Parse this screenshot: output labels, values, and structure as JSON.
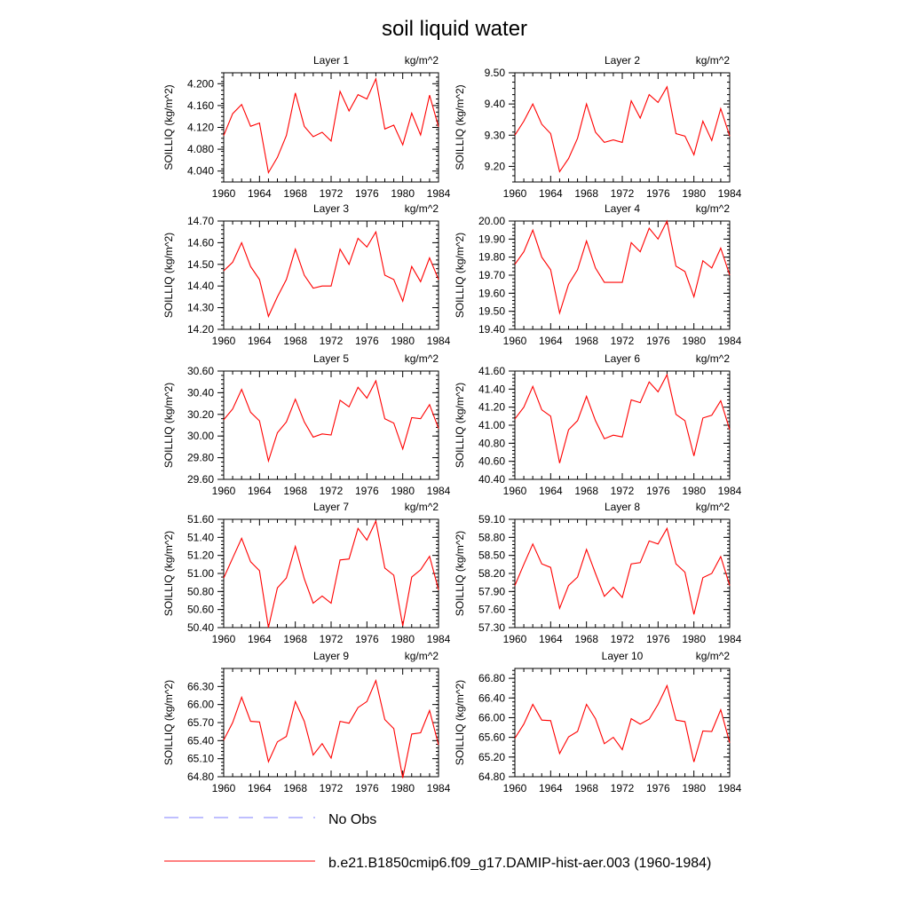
{
  "title": "soil liquid water",
  "legend": {
    "items": [
      {
        "label": "No Obs",
        "color": "#9999ff",
        "dash": true
      },
      {
        "label": "b.e21.B1850cmip6.f09_g17.DAMIP-hist-aer.003 (1960-1984)",
        "color": "#ff0000",
        "dash": false
      }
    ]
  },
  "series_color": "#ff0000",
  "chart_data": [
    {
      "type": "line",
      "title": "Layer 1",
      "units": "kg/m^2",
      "ylabel": "SOILLIQ  (kg/m^2)",
      "x": [
        1960,
        1961,
        1962,
        1963,
        1964,
        1965,
        1966,
        1967,
        1968,
        1969,
        1970,
        1971,
        1972,
        1973,
        1974,
        1975,
        1976,
        1977,
        1978,
        1979,
        1980,
        1981,
        1982,
        1983,
        1984
      ],
      "values": [
        4.105,
        4.145,
        4.162,
        4.122,
        4.128,
        4.037,
        4.065,
        4.105,
        4.183,
        4.122,
        4.103,
        4.111,
        4.095,
        4.186,
        4.15,
        4.18,
        4.172,
        4.209,
        4.117,
        4.124,
        4.088,
        4.146,
        4.106,
        4.179,
        4.121
      ],
      "xlim": [
        1960,
        1984
      ],
      "ylim": [
        4.02,
        4.22
      ],
      "xticks": [
        "1960",
        "1964",
        "1968",
        "1972",
        "1976",
        "1980",
        "1984"
      ],
      "yticks": [
        "4.040",
        "4.080",
        "4.120",
        "4.160",
        "4.200"
      ]
    },
    {
      "type": "line",
      "title": "Layer 2",
      "units": "kg/m^2",
      "ylabel": "SOILLIQ  (kg/m^2)",
      "x": [
        1960,
        1961,
        1962,
        1963,
        1964,
        1965,
        1966,
        1967,
        1968,
        1969,
        1970,
        1971,
        1972,
        1973,
        1974,
        1975,
        1976,
        1977,
        1978,
        1979,
        1980,
        1981,
        1982,
        1983,
        1984
      ],
      "values": [
        9.3,
        9.345,
        9.4,
        9.335,
        9.305,
        9.183,
        9.225,
        9.29,
        9.4,
        9.31,
        9.277,
        9.285,
        9.277,
        9.41,
        9.355,
        9.43,
        9.405,
        9.455,
        9.305,
        9.297,
        9.237,
        9.345,
        9.283,
        9.385,
        9.297
      ],
      "xlim": [
        1960,
        1984
      ],
      "ylim": [
        9.15,
        9.5
      ],
      "xticks": [
        "1960",
        "1964",
        "1968",
        "1972",
        "1976",
        "1980",
        "1984"
      ],
      "yticks": [
        "9.20",
        "9.30",
        "9.40",
        "9.50"
      ]
    },
    {
      "type": "line",
      "title": "Layer 3",
      "units": "kg/m^2",
      "ylabel": "SOILLIQ  (kg/m^2)",
      "x": [
        1960,
        1961,
        1962,
        1963,
        1964,
        1965,
        1966,
        1967,
        1968,
        1969,
        1970,
        1971,
        1972,
        1973,
        1974,
        1975,
        1976,
        1977,
        1978,
        1979,
        1980,
        1981,
        1982,
        1983,
        1984
      ],
      "values": [
        14.47,
        14.51,
        14.6,
        14.49,
        14.43,
        14.26,
        14.35,
        14.43,
        14.57,
        14.45,
        14.39,
        14.4,
        14.4,
        14.57,
        14.5,
        14.62,
        14.58,
        14.65,
        14.45,
        14.43,
        14.33,
        14.49,
        14.42,
        14.53,
        14.43
      ],
      "xlim": [
        1960,
        1984
      ],
      "ylim": [
        14.2,
        14.7
      ],
      "xticks": [
        "1960",
        "1964",
        "1968",
        "1972",
        "1976",
        "1980",
        "1984"
      ],
      "yticks": [
        "14.20",
        "14.30",
        "14.40",
        "14.50",
        "14.60",
        "14.70"
      ]
    },
    {
      "type": "line",
      "title": "Layer 4",
      "units": "kg/m^2",
      "ylabel": "SOILLIQ  (kg/m^2)",
      "x": [
        1960,
        1961,
        1962,
        1963,
        1964,
        1965,
        1966,
        1967,
        1968,
        1969,
        1970,
        1971,
        1972,
        1973,
        1974,
        1975,
        1976,
        1977,
        1978,
        1979,
        1980,
        1981,
        1982,
        1983,
        1984
      ],
      "values": [
        19.76,
        19.83,
        19.95,
        19.8,
        19.73,
        19.49,
        19.65,
        19.73,
        19.89,
        19.74,
        19.66,
        19.66,
        19.66,
        19.88,
        19.83,
        19.96,
        19.9,
        20.0,
        19.75,
        19.72,
        19.58,
        19.78,
        19.74,
        19.85,
        19.7
      ],
      "xlim": [
        1960,
        1984
      ],
      "ylim": [
        19.4,
        20.0
      ],
      "xticks": [
        "1960",
        "1964",
        "1968",
        "1972",
        "1976",
        "1980",
        "1984"
      ],
      "yticks": [
        "19.40",
        "19.50",
        "19.60",
        "19.70",
        "19.80",
        "19.90",
        "20.00"
      ]
    },
    {
      "type": "line",
      "title": "Layer 5",
      "units": "kg/m^2",
      "ylabel": "SOILLIQ  (kg/m^2)",
      "x": [
        1960,
        1961,
        1962,
        1963,
        1964,
        1965,
        1966,
        1967,
        1968,
        1969,
        1970,
        1971,
        1972,
        1973,
        1974,
        1975,
        1976,
        1977,
        1978,
        1979,
        1980,
        1981,
        1982,
        1983,
        1984
      ],
      "values": [
        30.15,
        30.25,
        30.43,
        30.22,
        30.14,
        29.77,
        30.03,
        30.13,
        30.34,
        30.13,
        29.99,
        30.02,
        30.01,
        30.33,
        30.27,
        30.45,
        30.35,
        30.51,
        30.16,
        30.12,
        29.88,
        30.17,
        30.16,
        30.29,
        30.07
      ],
      "xlim": [
        1960,
        1984
      ],
      "ylim": [
        29.6,
        30.6
      ],
      "xticks": [
        "1960",
        "1964",
        "1968",
        "1972",
        "1976",
        "1980",
        "1984"
      ],
      "yticks": [
        "29.60",
        "29.80",
        "30.00",
        "30.20",
        "30.40",
        "30.60"
      ]
    },
    {
      "type": "line",
      "title": "Layer 6",
      "units": "kg/m^2",
      "ylabel": "SOILLIQ  (kg/m^2)",
      "x": [
        1960,
        1961,
        1962,
        1963,
        1964,
        1965,
        1966,
        1967,
        1968,
        1969,
        1970,
        1971,
        1972,
        1973,
        1974,
        1975,
        1976,
        1977,
        1978,
        1979,
        1980,
        1981,
        1982,
        1983,
        1984
      ],
      "values": [
        41.07,
        41.2,
        41.43,
        41.17,
        41.1,
        40.58,
        40.95,
        41.05,
        41.32,
        41.05,
        40.85,
        40.89,
        40.87,
        41.28,
        41.25,
        41.48,
        41.37,
        41.56,
        41.12,
        41.05,
        40.66,
        41.08,
        41.11,
        41.27,
        40.95
      ],
      "xlim": [
        1960,
        1984
      ],
      "ylim": [
        40.4,
        41.6
      ],
      "xticks": [
        "1960",
        "1964",
        "1968",
        "1972",
        "1976",
        "1980",
        "1984"
      ],
      "yticks": [
        "40.40",
        "40.60",
        "40.80",
        "41.00",
        "41.20",
        "41.40",
        "41.60"
      ]
    },
    {
      "type": "line",
      "title": "Layer 7",
      "units": "kg/m^2",
      "ylabel": "SOILLIQ  (kg/m^2)",
      "x": [
        1960,
        1961,
        1962,
        1963,
        1964,
        1965,
        1966,
        1967,
        1968,
        1969,
        1970,
        1971,
        1972,
        1973,
        1974,
        1975,
        1976,
        1977,
        1978,
        1979,
        1980,
        1981,
        1982,
        1983,
        1984
      ],
      "values": [
        50.95,
        51.17,
        51.39,
        51.13,
        51.03,
        50.4,
        50.84,
        50.95,
        51.3,
        50.94,
        50.67,
        50.75,
        50.67,
        51.15,
        51.16,
        51.5,
        51.37,
        51.58,
        51.06,
        50.98,
        50.42,
        50.96,
        51.04,
        51.19,
        50.82
      ],
      "xlim": [
        1960,
        1984
      ],
      "ylim": [
        50.4,
        51.6
      ],
      "xticks": [
        "1960",
        "1964",
        "1968",
        "1972",
        "1976",
        "1980",
        "1984"
      ],
      "yticks": [
        "50.40",
        "50.60",
        "50.80",
        "51.00",
        "51.20",
        "51.40",
        "51.60"
      ]
    },
    {
      "type": "line",
      "title": "Layer 8",
      "units": "kg/m^2",
      "ylabel": "SOILLIQ  (kg/m^2)",
      "x": [
        1960,
        1961,
        1962,
        1963,
        1964,
        1965,
        1966,
        1967,
        1968,
        1969,
        1970,
        1971,
        1972,
        1973,
        1974,
        1975,
        1976,
        1977,
        1978,
        1979,
        1980,
        1981,
        1982,
        1983,
        1984
      ],
      "values": [
        58.0,
        58.35,
        58.69,
        58.36,
        58.3,
        57.62,
        58.0,
        58.14,
        58.6,
        58.2,
        57.82,
        57.97,
        57.8,
        58.36,
        58.38,
        58.74,
        58.69,
        58.95,
        58.36,
        58.22,
        57.52,
        58.13,
        58.2,
        58.48,
        58.0
      ],
      "xlim": [
        1960,
        1984
      ],
      "ylim": [
        57.3,
        59.1
      ],
      "xticks": [
        "1960",
        "1964",
        "1968",
        "1972",
        "1976",
        "1980",
        "1984"
      ],
      "yticks": [
        "57.30",
        "57.60",
        "57.90",
        "58.20",
        "58.50",
        "58.80",
        "59.10"
      ]
    },
    {
      "type": "line",
      "title": "Layer 9",
      "units": "kg/m^2",
      "ylabel": "SOILLIQ  (kg/m^2)",
      "x": [
        1960,
        1961,
        1962,
        1963,
        1964,
        1965,
        1966,
        1967,
        1968,
        1969,
        1970,
        1971,
        1972,
        1973,
        1974,
        1975,
        1976,
        1977,
        1978,
        1979,
        1980,
        1981,
        1982,
        1983,
        1984
      ],
      "values": [
        65.41,
        65.7,
        66.12,
        65.72,
        65.71,
        65.05,
        65.38,
        65.47,
        66.05,
        65.72,
        65.16,
        65.35,
        65.11,
        65.72,
        65.69,
        65.95,
        66.05,
        66.4,
        65.75,
        65.6,
        64.78,
        65.51,
        65.53,
        65.9,
        65.33
      ],
      "xlim": [
        1960,
        1984
      ],
      "ylim": [
        64.8,
        66.6
      ],
      "xticks": [
        "1960",
        "1964",
        "1968",
        "1972",
        "1976",
        "1980",
        "1984"
      ],
      "yticks": [
        "64.80",
        "65.10",
        "65.40",
        "65.70",
        "66.00",
        "66.30"
      ]
    },
    {
      "type": "line",
      "title": "Layer 10",
      "units": "kg/m^2",
      "ylabel": "SOILLIQ  (kg/m^2)",
      "x": [
        1960,
        1961,
        1962,
        1963,
        1964,
        1965,
        1966,
        1967,
        1968,
        1969,
        1970,
        1971,
        1972,
        1973,
        1974,
        1975,
        1976,
        1977,
        1978,
        1979,
        1980,
        1981,
        1982,
        1983,
        1984
      ],
      "values": [
        65.58,
        65.87,
        66.27,
        65.95,
        65.94,
        65.27,
        65.61,
        65.72,
        66.27,
        65.98,
        65.47,
        65.6,
        65.35,
        65.98,
        65.87,
        65.97,
        66.27,
        66.65,
        65.95,
        65.92,
        65.1,
        65.73,
        65.72,
        66.16,
        65.49
      ],
      "xlim": [
        1960,
        1984
      ],
      "ylim": [
        64.8,
        67.0
      ],
      "xticks": [
        "1960",
        "1964",
        "1968",
        "1972",
        "1976",
        "1980",
        "1984"
      ],
      "yticks": [
        "64.80",
        "65.20",
        "65.60",
        "66.00",
        "66.40",
        "66.80"
      ]
    }
  ]
}
